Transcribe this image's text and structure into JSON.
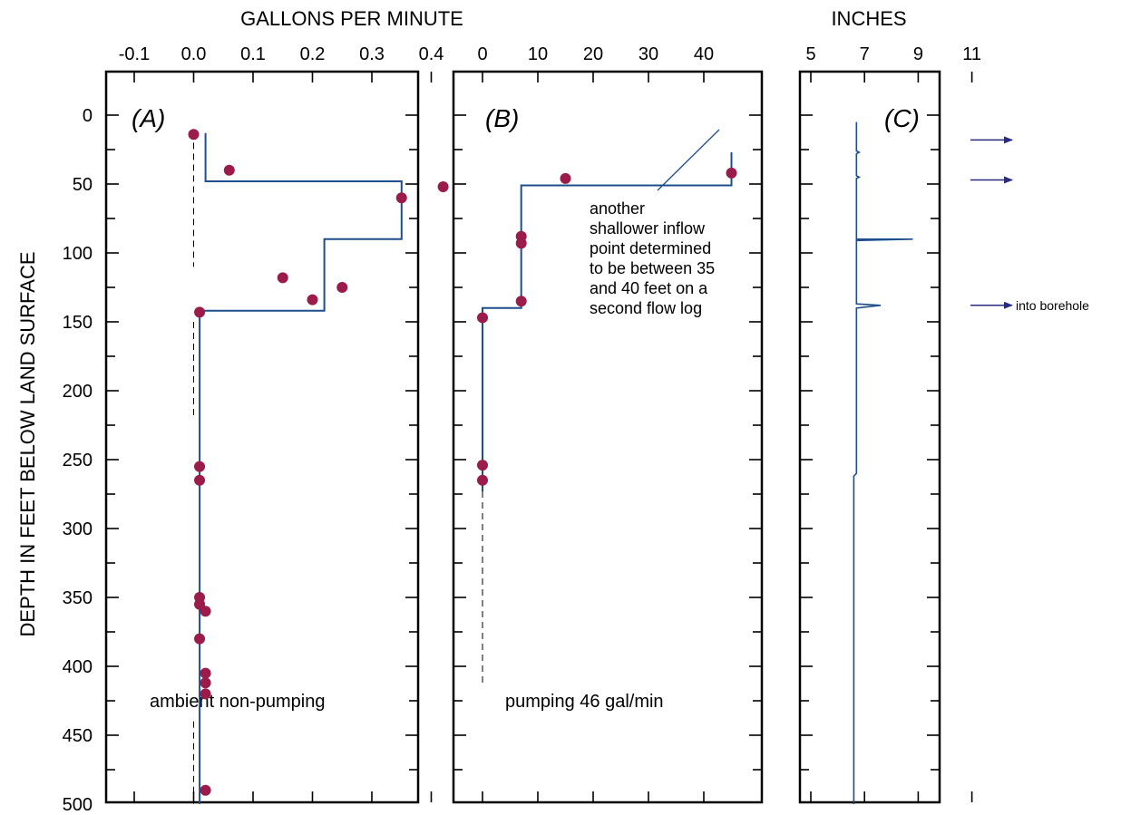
{
  "figure": {
    "top_xlabel_flow": "GALLONS PER MINUTE",
    "top_xlabel_caliper": "INCHES",
    "ylabel": "DEPTH IN FEET BELOW LAND SURFACE",
    "y_ticks": [
      "0",
      "50",
      "100",
      "150",
      "200",
      "250",
      "300",
      "350",
      "400",
      "450",
      "500"
    ]
  },
  "colors": {
    "line": "#1f4e8c",
    "points": "#9b1b4a",
    "arrow": "#2a2a80",
    "frame": "#000000"
  },
  "chart_data": [
    {
      "type": "line",
      "panel": "(A)",
      "annotation": "ambient non-pumping",
      "xlabel": "GALLONS PER MINUTE",
      "ylabel": "DEPTH IN FEET BELOW LAND SURFACE",
      "x_ticks": [
        "-0.1",
        "0.0",
        "0.1",
        "0.2",
        "0.3",
        "0.4"
      ],
      "xlim": [
        -0.15,
        0.45
      ],
      "ylim": [
        500,
        -20
      ],
      "y_inverted": true,
      "grid": false,
      "series": [
        {
          "style": "step-line",
          "points": [
            [
              0.02,
              13
            ],
            [
              0.02,
              48
            ],
            [
              0.35,
              48
            ],
            [
              0.35,
              90
            ],
            [
              0.22,
              90
            ],
            [
              0.22,
              142
            ],
            [
              0.01,
              142
            ],
            [
              0.01,
              500
            ]
          ]
        },
        {
          "style": "dashed-line",
          "points": [
            [
              0.0,
              20
            ],
            [
              0.0,
              110
            ]
          ]
        },
        {
          "style": "dashed-line",
          "points": [
            [
              0.0,
              150
            ],
            [
              0.0,
              220
            ]
          ]
        },
        {
          "style": "dashed-line",
          "points": [
            [
              0.0,
              440
            ],
            [
              0.0,
              500
            ]
          ]
        },
        {
          "style": "points",
          "points": [
            [
              0.0,
              14
            ],
            [
              0.06,
              40
            ],
            [
              0.42,
              52
            ],
            [
              0.35,
              60
            ],
            [
              0.15,
              118
            ],
            [
              0.25,
              125
            ],
            [
              0.2,
              134
            ],
            [
              0.01,
              143
            ],
            [
              0.01,
              255
            ],
            [
              0.01,
              265
            ],
            [
              0.01,
              350
            ],
            [
              0.01,
              355
            ],
            [
              0.02,
              360
            ],
            [
              0.01,
              380
            ],
            [
              0.02,
              405
            ],
            [
              0.02,
              412
            ],
            [
              0.02,
              420
            ],
            [
              0.02,
              490
            ]
          ]
        }
      ]
    },
    {
      "type": "line",
      "panel": "(B)",
      "annotation": "pumping 46 gal/min",
      "note": "another shallower inflow point determined to be between 35 and 40 feet on a second flow log",
      "note_lines": [
        "another",
        "shallower inflow",
        "point determined",
        "to be between 35",
        "and 40 feet on a",
        "second flow log"
      ],
      "xlabel": "GALLONS PER MINUTE",
      "x_ticks": [
        "0",
        "10",
        "20",
        "30",
        "40"
      ],
      "xlim": [
        -4,
        50
      ],
      "ylim": [
        500,
        -20
      ],
      "y_inverted": true,
      "grid": false,
      "series": [
        {
          "style": "step-line",
          "points": [
            [
              45,
              27
            ],
            [
              45,
              51
            ],
            [
              7,
              51
            ],
            [
              7,
              140
            ],
            [
              0,
              140
            ],
            [
              0,
              273
            ]
          ]
        },
        {
          "style": "dashed-line",
          "points": [
            [
              0,
              273
            ],
            [
              0,
              412
            ]
          ]
        },
        {
          "style": "points",
          "points": [
            [
              45,
              42
            ],
            [
              15,
              46
            ],
            [
              7,
              88
            ],
            [
              7,
              93
            ],
            [
              7,
              135
            ],
            [
              0,
              147
            ],
            [
              0,
              254
            ],
            [
              0,
              265
            ]
          ]
        }
      ]
    },
    {
      "type": "line",
      "panel": "(C)",
      "xlabel": "INCHES",
      "x_ticks": [
        "5",
        "7",
        "9",
        "11"
      ],
      "xlim": [
        5,
        12
      ],
      "ylim": [
        500,
        -20
      ],
      "y_inverted": true,
      "grid": false,
      "series": [
        {
          "style": "caliper-trace",
          "points": [
            [
              6.7,
              5
            ],
            [
              6.7,
              26
            ],
            [
              6.8,
              27
            ],
            [
              6.7,
              28
            ],
            [
              6.7,
              44
            ],
            [
              6.8,
              45
            ],
            [
              6.7,
              46
            ],
            [
              6.7,
              90
            ],
            [
              8.8,
              90
            ],
            [
              6.7,
              91
            ],
            [
              6.7,
              137
            ],
            [
              7.6,
              138
            ],
            [
              6.7,
              140
            ],
            [
              6.7,
              260
            ],
            [
              6.6,
              262
            ],
            [
              6.6,
              500
            ]
          ]
        }
      ],
      "arrows": [
        {
          "depth": 18,
          "label": ""
        },
        {
          "depth": 47,
          "label": ""
        },
        {
          "depth": 138,
          "label": "into borehole"
        }
      ]
    }
  ]
}
